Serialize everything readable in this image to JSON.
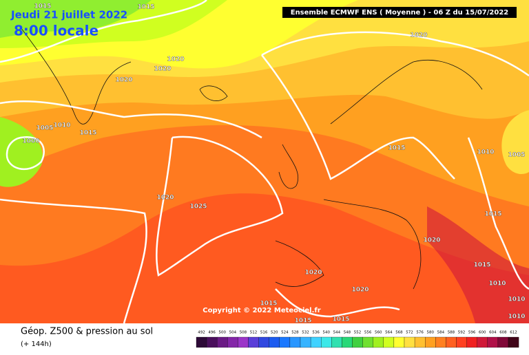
{
  "header": {
    "date": "Jeudi 21 juillet 2022",
    "time": "8:00 locale",
    "model": "Ensemble ECMWF ENS  ( Moyenne )  -  06 Z du 15/07/2022"
  },
  "isobar_labels": [
    1015,
    1015,
    1020,
    1020,
    1020,
    1020,
    1005,
    1010,
    1015,
    1000,
    1015,
    1010,
    1005,
    1020,
    1025,
    1015,
    1020,
    1015,
    1010,
    1020,
    1020,
    1010,
    1015,
    1015,
    1015,
    1010
  ],
  "copyright": "Copyright © 2022 Meteociel.fr",
  "legend": {
    "title": "Géop. Z500 & pression au sol",
    "subtitle": "(+ 144h)",
    "scale": [
      492,
      496,
      500,
      504,
      508,
      512,
      516,
      520,
      524,
      528,
      532,
      536,
      540,
      544,
      548,
      552,
      556,
      560,
      564,
      568,
      572,
      576,
      580,
      584,
      588,
      592,
      596,
      600,
      604,
      608,
      612
    ],
    "colors": [
      "#2d0a37",
      "#4a0f5c",
      "#6a1a84",
      "#8426a8",
      "#9b35c8",
      "#5a3ed8",
      "#3048e0",
      "#1c5cf0",
      "#1a78ff",
      "#2896ff",
      "#36b4ff",
      "#40d2ff",
      "#3ce8e8",
      "#30e0b0",
      "#28d878",
      "#40d040",
      "#70e030",
      "#a0f020",
      "#d0ff20",
      "#ffff30",
      "#ffe040",
      "#ffc030",
      "#ffa020",
      "#ff8020",
      "#ff6020",
      "#ff4020",
      "#f02020",
      "#d01838",
      "#b01048",
      "#800838",
      "#400418"
    ]
  }
}
